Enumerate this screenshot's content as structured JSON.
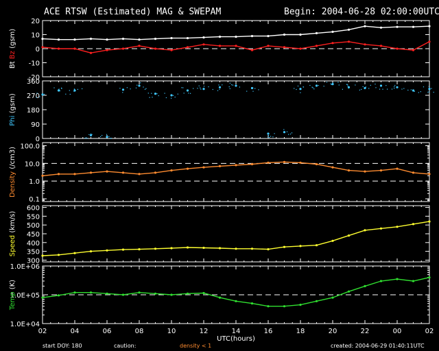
{
  "header": {
    "title": "ACE RTSW (Estimated) MAG & SWEPAM",
    "begin": "Begin: 2004-06-28 02:00:00UTC"
  },
  "footer": {
    "start_doy": "start DOY: 180",
    "caution": "caution:",
    "density_note": "density < 1",
    "created": "created: 2004-06-29 01:40:11UTC"
  },
  "colors": {
    "bt": "#ffffff",
    "bz": "#ff2020",
    "phi": "#40c8ff",
    "density": "#ff8c30",
    "speed": "#ffff30",
    "temp": "#30e030",
    "axis": "#ffffff",
    "caution": "#ff8c30"
  },
  "chart_data": [
    {
      "type": "line",
      "id": "mag",
      "ylabel_parts": [
        "Bt",
        " Bz",
        " (gsm)"
      ],
      "ylabel_colors": [
        "#ffffff",
        "#ff2020",
        "#ffffff"
      ],
      "yticks": [
        20,
        10,
        0,
        -10,
        -20
      ],
      "ylim": [
        -20,
        20
      ],
      "dashed": [
        0
      ],
      "x_hours": [
        0,
        1,
        2,
        3,
        4,
        5,
        6,
        7,
        8,
        9,
        10,
        11,
        12,
        13,
        14,
        15,
        16,
        17,
        18,
        19,
        20,
        21,
        22,
        23,
        24
      ],
      "series": [
        {
          "name": "Bt",
          "color": "#ffffff",
          "values": [
            7,
            6.5,
            6.5,
            7,
            6.5,
            7,
            6.5,
            7,
            7.5,
            7.5,
            8,
            8.5,
            8.5,
            9,
            9,
            10,
            10,
            11,
            12,
            13.5,
            16,
            15,
            15.5,
            15.5,
            16
          ]
        },
        {
          "name": "Bz",
          "color": "#ff2020",
          "values": [
            1,
            0,
            0,
            -3,
            -1,
            0,
            2,
            0,
            -1,
            1,
            3,
            2,
            2,
            -1,
            2,
            1,
            0,
            2,
            4,
            5,
            3,
            2,
            0,
            -1,
            5
          ]
        }
      ]
    },
    {
      "type": "scatter",
      "id": "phi",
      "ylabel_parts": [
        "Phi",
        " (gsm)"
      ],
      "ylabel_colors": [
        "#40c8ff",
        "#ffffff"
      ],
      "yticks": [
        360,
        270,
        180,
        90,
        0
      ],
      "ylim": [
        0,
        360
      ],
      "dashed": [],
      "x_hours": [
        0,
        1,
        2,
        3,
        4,
        5,
        6,
        7,
        8,
        9,
        10,
        11,
        12,
        13,
        14,
        15,
        16,
        17,
        18,
        19,
        20,
        21,
        22,
        23,
        24
      ],
      "series": [
        {
          "name": "Phi",
          "color": "#40c8ff",
          "values": [
            275,
            300,
            300,
            20,
            10,
            305,
            330,
            280,
            270,
            300,
            310,
            320,
            330,
            315,
            30,
            40,
            310,
            330,
            340,
            320,
            315,
            330,
            320,
            300,
            310
          ]
        }
      ]
    },
    {
      "type": "line",
      "id": "density",
      "log": true,
      "ylabel_parts": [
        "Density",
        " (/cm3)"
      ],
      "ylabel_colors": [
        "#ff8c30",
        "#ffffff"
      ],
      "yticks": [
        100.0,
        10.0,
        1.0,
        0.1
      ],
      "ytick_labels": [
        "100.0",
        "10.0",
        "1.0",
        "0.1"
      ],
      "ylim": [
        0.07,
        150
      ],
      "dashed": [
        10.0,
        1.0
      ],
      "x_hours": [
        0,
        1,
        2,
        3,
        4,
        5,
        6,
        7,
        8,
        9,
        10,
        11,
        12,
        13,
        14,
        15,
        16,
        17,
        18,
        19,
        20,
        21,
        22,
        23,
        24
      ],
      "series": [
        {
          "name": "Density",
          "color": "#ff8c30",
          "values": [
            2,
            2.5,
            2.5,
            3,
            3.5,
            3,
            2.5,
            3,
            4,
            5,
            6,
            7,
            8,
            9,
            11,
            12,
            11,
            9,
            6,
            4,
            3.5,
            4,
            5,
            3,
            2.5
          ]
        }
      ]
    },
    {
      "type": "line",
      "id": "speed",
      "ylabel_parts": [
        "Speed",
        " (km/s)"
      ],
      "ylabel_colors": [
        "#ffff30",
        "#ffffff"
      ],
      "yticks": [
        600,
        550,
        500,
        450,
        400,
        350,
        300
      ],
      "ylim": [
        290,
        610
      ],
      "dashed": [],
      "x_hours": [
        0,
        1,
        2,
        3,
        4,
        5,
        6,
        7,
        8,
        9,
        10,
        11,
        12,
        13,
        14,
        15,
        16,
        17,
        18,
        19,
        20,
        21,
        22,
        23,
        24
      ],
      "series": [
        {
          "name": "Speed",
          "color": "#ffff30",
          "values": [
            325,
            330,
            340,
            350,
            355,
            360,
            362,
            365,
            368,
            372,
            370,
            368,
            365,
            365,
            362,
            375,
            380,
            385,
            410,
            440,
            470,
            480,
            490,
            505,
            520
          ]
        }
      ]
    },
    {
      "type": "line",
      "id": "temp",
      "log": true,
      "ylabel_parts": [
        "Temp",
        " (K)"
      ],
      "ylabel_colors": [
        "#30e030",
        "#ffffff"
      ],
      "yticks": [
        1000000,
        100000,
        10000
      ],
      "ytick_labels": [
        "1.0E+06",
        "1.0E+05",
        "1.0E+04"
      ],
      "ylim": [
        10000,
        1000000
      ],
      "dashed": [
        100000
      ],
      "x_hours": [
        0,
        1,
        2,
        3,
        4,
        5,
        6,
        7,
        8,
        9,
        10,
        11,
        12,
        13,
        14,
        15,
        16,
        17,
        18,
        19,
        20,
        21,
        22,
        23,
        24
      ],
      "series": [
        {
          "name": "Temp",
          "color": "#30e030",
          "values": [
            80000,
            95000,
            120000,
            120000,
            110000,
            100000,
            120000,
            110000,
            100000,
            110000,
            115000,
            80000,
            60000,
            50000,
            40000,
            40000,
            45000,
            60000,
            80000,
            130000,
            200000,
            300000,
            350000,
            300000,
            400000
          ]
        }
      ]
    }
  ],
  "xaxis": {
    "tick_labels": [
      "02",
      "04",
      "06",
      "08",
      "10",
      "12",
      "14",
      "16",
      "18",
      "20",
      "22",
      "00",
      "02"
    ],
    "tick_hours": [
      0,
      2,
      4,
      6,
      8,
      10,
      12,
      14,
      16,
      18,
      20,
      22,
      24
    ],
    "xlabel": "UTC(hours)",
    "xlim": [
      0,
      24
    ]
  }
}
